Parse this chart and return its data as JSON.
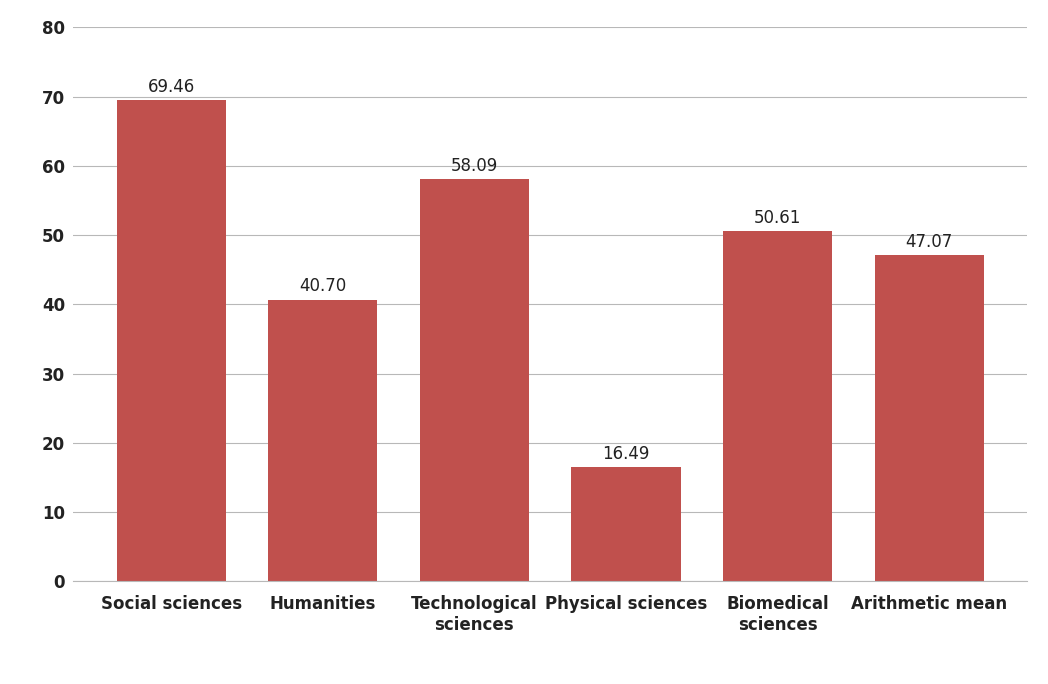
{
  "categories": [
    "Social sciences",
    "Humanities",
    "Technological\nsciences",
    "Physical sciences",
    "Biomedical\nsciences",
    "Arithmetic mean"
  ],
  "values": [
    69.46,
    40.7,
    58.09,
    16.49,
    50.61,
    47.07
  ],
  "labels": [
    "69.46",
    "40.70",
    "58.09",
    "16.49",
    "50.61",
    "47.07"
  ],
  "bar_color": "#c0504d",
  "ylim": [
    0,
    80
  ],
  "yticks": [
    0,
    10,
    20,
    30,
    40,
    50,
    60,
    70,
    80
  ],
  "background_color": "#ffffff",
  "grid_color": "#b8b8b8",
  "label_fontsize": 12,
  "tick_fontsize": 12,
  "value_label_fontsize": 12,
  "bar_width": 0.72
}
